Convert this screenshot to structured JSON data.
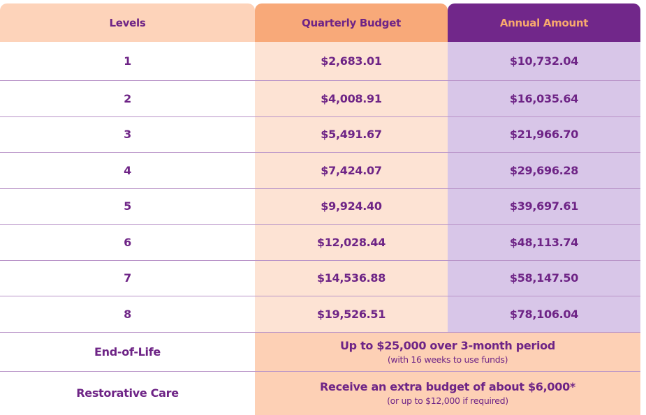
{
  "headers": {
    "levels": "Levels",
    "quarterly": "Quarterly Budget",
    "annual": "Annual Amount"
  },
  "rows": [
    {
      "level": "1",
      "quarterly": "$2,683.01",
      "annual": "$10,732.04"
    },
    {
      "level": "2",
      "quarterly": "$4,008.91",
      "annual": "$16,035.64"
    },
    {
      "level": "3",
      "quarterly": "$5,491.67",
      "annual": "$21,966.70"
    },
    {
      "level": "4",
      "quarterly": "$7,424.07",
      "annual": "$29,696.28"
    },
    {
      "level": "5",
      "quarterly": "$9,924.40",
      "annual": "$39,697.61"
    },
    {
      "level": "6",
      "quarterly": "$12,028.44",
      "annual": "$48,113.74"
    },
    {
      "level": "7",
      "quarterly": "$14,536.88",
      "annual": "$58,147.50"
    },
    {
      "level": "8",
      "quarterly": "$19,526.51",
      "annual": "$78,106.04"
    }
  ],
  "extras": [
    {
      "label": "End-of-Life",
      "main": "Up to $25,000 over 3-month period",
      "sub": "(with 16 weeks to use funds)"
    },
    {
      "label": "Restorative Care",
      "main": "Receive an extra budget of about $6,000*",
      "sub": "(or up to $12,000 if required)"
    }
  ],
  "colors": {
    "text": "#6e2486",
    "levels_header": "#fdd3ba",
    "quarterly_header": "#f8a979",
    "annual_header": "#71278a",
    "quarterly_cell": "#fde3d4",
    "annual_cell": "#d8c6e8",
    "merged_cell": "#fdd0b5"
  }
}
